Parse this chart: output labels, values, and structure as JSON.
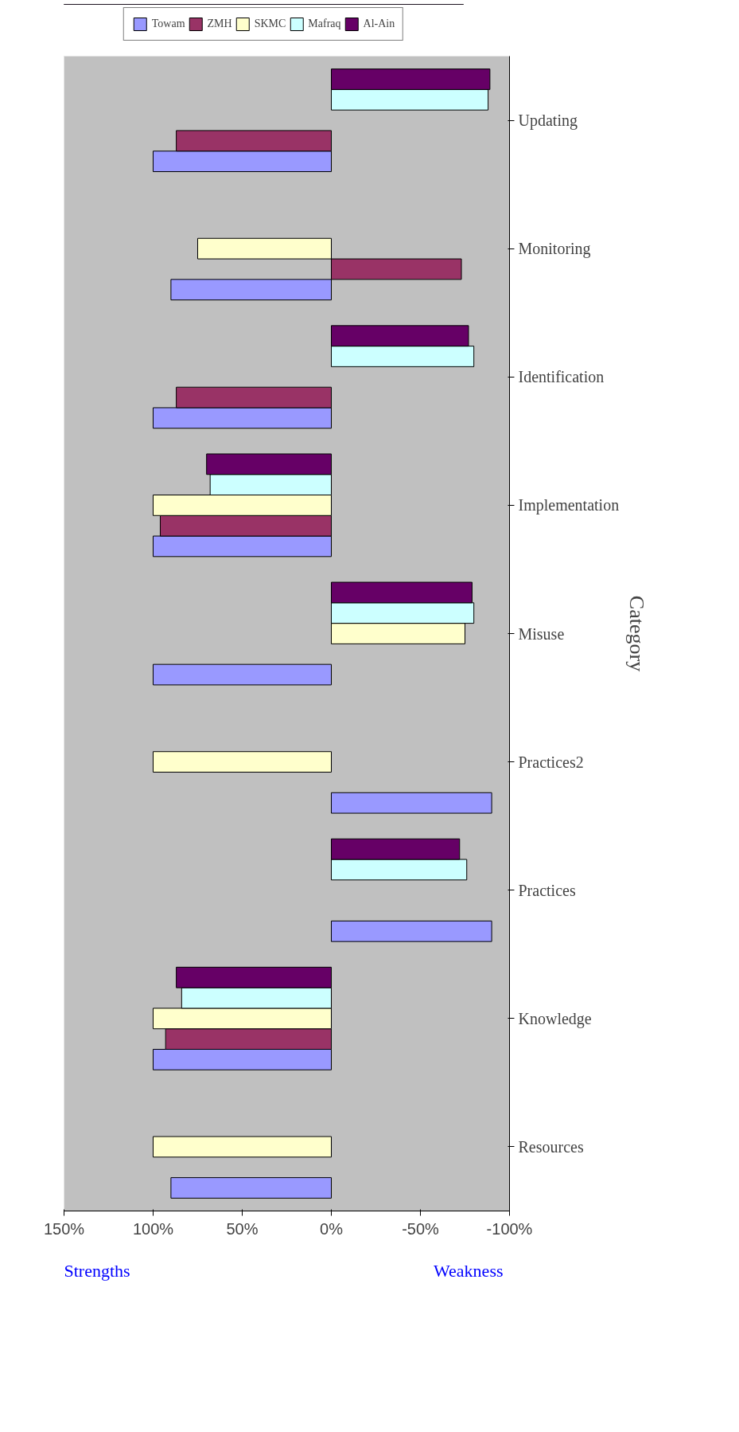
{
  "chart_data": {
    "type": "bar",
    "orientation": "horizontal",
    "ylabel": "Category",
    "categories": [
      "Updating",
      "Monitoring",
      "Identification",
      "Implementation",
      "Misuse",
      "Practices2",
      "Practices",
      "Knowledge",
      "Resources"
    ],
    "series": [
      {
        "name": "Towam",
        "color": "#9999ff",
        "values": [
          100,
          90,
          100,
          100,
          100,
          -90,
          -90,
          100,
          90
        ]
      },
      {
        "name": "ZMH",
        "color": "#993366",
        "values": [
          87,
          -73,
          87,
          96,
          null,
          null,
          null,
          93,
          null
        ]
      },
      {
        "name": "SKMC",
        "color": "#ffffcc",
        "values": [
          null,
          75,
          null,
          100,
          -75,
          100,
          null,
          100,
          100
        ]
      },
      {
        "name": "Mafraq",
        "color": "#ccffff",
        "values": [
          -88,
          null,
          -80,
          68,
          -80,
          null,
          -76,
          84,
          null
        ]
      },
      {
        "name": "Al-Ain",
        "color": "#660066",
        "values": [
          -89,
          null,
          -77,
          70,
          -79,
          null,
          -72,
          87,
          null
        ]
      }
    ],
    "xlim": [
      150,
      -100
    ],
    "xticks": [
      {
        "value": 150,
        "label": "150%"
      },
      {
        "value": 100,
        "label": "100%"
      },
      {
        "value": 50,
        "label": "50%"
      },
      {
        "value": 0,
        "label": "0%"
      },
      {
        "value": -50,
        "label": "-50%"
      },
      {
        "value": -100,
        "label": "-100%"
      }
    ],
    "annotations": [
      "Strengths",
      "Weakness"
    ],
    "legend": "top",
    "grid": false
  }
}
